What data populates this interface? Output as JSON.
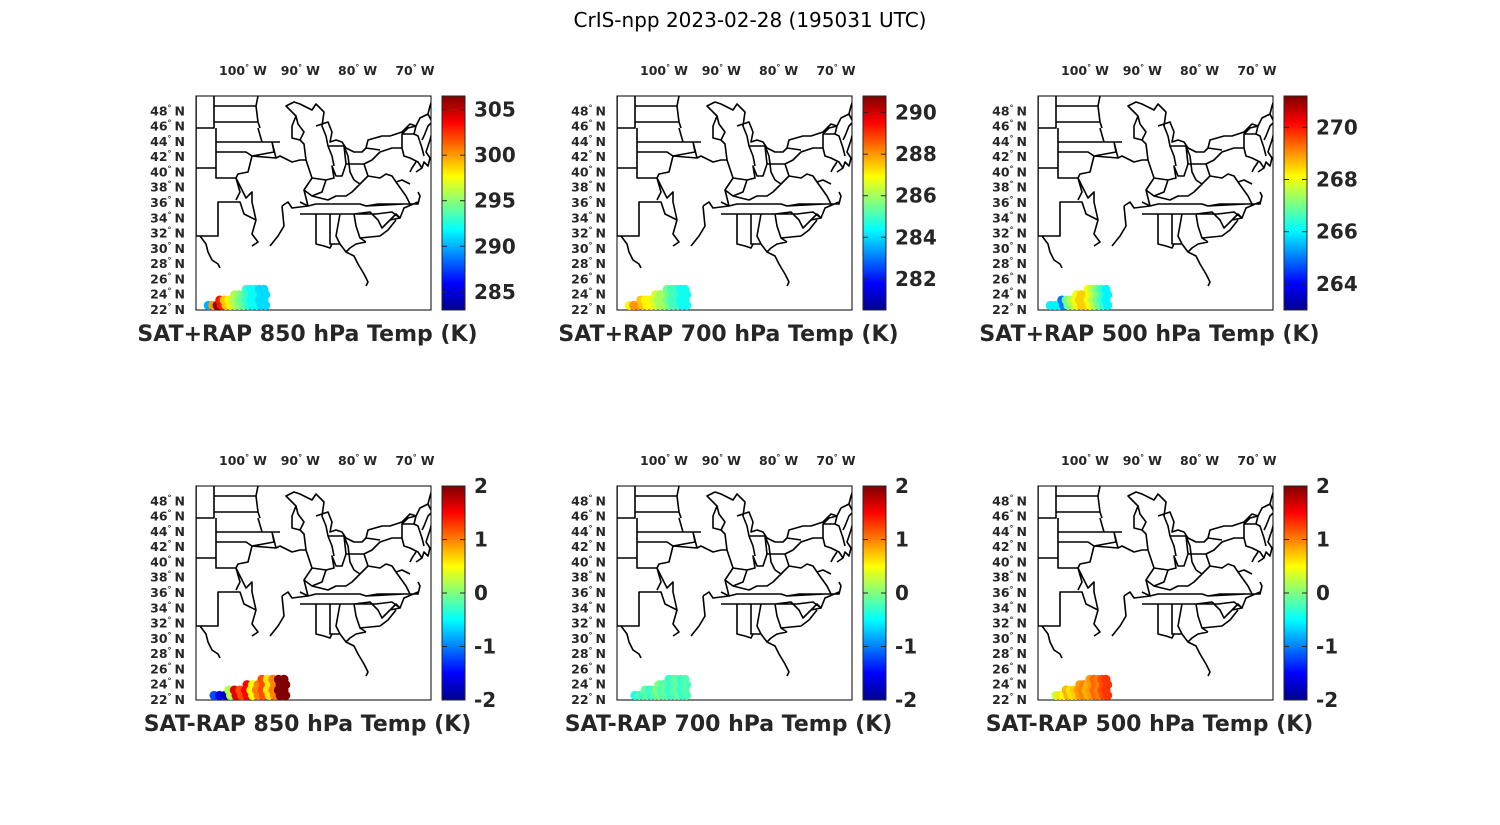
{
  "figure": {
    "title": "CrIS-npp 2023-02-28 (195031 UTC)"
  },
  "map_extent": {
    "lon_min": -107.5,
    "lon_max": -66.5,
    "lat_min": 22,
    "lat_max": 50
  },
  "lon_ticks": [
    {
      "lon": -100,
      "num": "100",
      "hem": "W"
    },
    {
      "lon": -90,
      "num": "90",
      "hem": "W"
    },
    {
      "lon": -80,
      "num": "80",
      "hem": "W"
    },
    {
      "lon": -70,
      "num": "70",
      "hem": "W"
    }
  ],
  "lat_ticks": [
    {
      "lat": 48,
      "num": "48",
      "hem": "N"
    },
    {
      "lat": 46,
      "num": "46",
      "hem": "N"
    },
    {
      "lat": 44,
      "num": "44",
      "hem": "N"
    },
    {
      "lat": 42,
      "num": "42",
      "hem": "N"
    },
    {
      "lat": 40,
      "num": "40",
      "hem": "N"
    },
    {
      "lat": 38,
      "num": "38",
      "hem": "N"
    },
    {
      "lat": 36,
      "num": "36",
      "hem": "N"
    },
    {
      "lat": 34,
      "num": "34",
      "hem": "N"
    },
    {
      "lat": 32,
      "num": "32",
      "hem": "N"
    },
    {
      "lat": 30,
      "num": "30",
      "hem": "N"
    },
    {
      "lat": 28,
      "num": "28",
      "hem": "N"
    },
    {
      "lat": 26,
      "num": "26",
      "hem": "N"
    },
    {
      "lat": 24,
      "num": "24",
      "hem": "N"
    },
    {
      "lat": 22,
      "num": "22",
      "hem": "N"
    }
  ],
  "colormap": "jet",
  "panels": [
    {
      "title": "SAT+RAP 850 hPa Temp (K)",
      "clim": [
        283,
        306.5
      ],
      "ticks": [
        "305",
        "300",
        "295",
        "290",
        "285"
      ],
      "tick_values": [
        305,
        300,
        295,
        290,
        285
      ],
      "swath": {
        "lon_start": -105.5,
        "lon_end": -95.5,
        "values_w_to_e": [
          290,
          300,
          306,
          303,
          299,
          298,
          296,
          295,
          294,
          293,
          292,
          292,
          291,
          291
        ]
      }
    },
    {
      "title": "SAT+RAP 700 hPa Temp (K)",
      "clim": [
        280.5,
        290.8
      ],
      "ticks": [
        "290",
        "288",
        "286",
        "284",
        "282"
      ],
      "tick_values": [
        290,
        288,
        286,
        284,
        282
      ],
      "swath": {
        "lon_start": -105.5,
        "lon_end": -95.5,
        "values_w_to_e": [
          287,
          288,
          288,
          287.5,
          287,
          287,
          286.5,
          286,
          286,
          285.5,
          285,
          285,
          284.5,
          284.5
        ]
      }
    },
    {
      "title": "SAT+RAP 500 hPa Temp (K)",
      "clim": [
        263,
        271.2
      ],
      "ticks": [
        "270",
        "268",
        "266",
        "264"
      ],
      "tick_values": [
        270,
        268,
        266,
        264
      ],
      "swath": {
        "lon_start": -105.5,
        "lon_end": -95.5,
        "values_w_to_e": [
          266,
          266,
          266,
          265,
          267,
          267.5,
          268,
          268.5,
          268.5,
          268,
          267.5,
          267,
          266.5,
          266
        ]
      }
    },
    {
      "title": "SAT-RAP 850 hPa Temp (K)",
      "clim": [
        -2,
        2
      ],
      "ticks": [
        "2",
        "1",
        "0",
        "-1",
        "-2"
      ],
      "tick_values": [
        2,
        1,
        0,
        -1,
        -2
      ],
      "swath": {
        "lon_start": -104.5,
        "lon_end": -92,
        "values_w_to_e": [
          -1.2,
          -1.5,
          -1.8,
          0.2,
          1.6,
          1.2,
          1.5,
          0.5,
          1.0,
          1.2,
          0.6,
          1.0,
          2.0,
          2.0
        ]
      }
    },
    {
      "title": "SAT-RAP 700 hPa Temp (K)",
      "clim": [
        -2,
        2
      ],
      "ticks": [
        "2",
        "1",
        "0",
        "-1",
        "-2"
      ],
      "tick_values": [
        2,
        1,
        0,
        -1,
        -2
      ],
      "swath": {
        "lon_start": -104.5,
        "lon_end": -95.5,
        "values_w_to_e": [
          -0.4,
          -0.2,
          -0.3,
          -0.1,
          -0.3,
          -0.2,
          0.0,
          -0.2,
          -0.1,
          -0.3,
          -0.2,
          -0.1,
          -0.3,
          -0.2
        ]
      }
    },
    {
      "title": "SAT-RAP 500 hPa Temp (K)",
      "clim": [
        -2,
        2
      ],
      "ticks": [
        "2",
        "1",
        "0",
        "-1",
        "-2"
      ],
      "tick_values": [
        2,
        1,
        0,
        -1,
        -2
      ],
      "swath": {
        "lon_start": -104.5,
        "lon_end": -95.5,
        "values_w_to_e": [
          0.3,
          0.6,
          0.5,
          0.8,
          0.6,
          0.7,
          0.9,
          1.0,
          0.8,
          0.9,
          1.1,
          1.0,
          1.2,
          1.3
        ]
      }
    }
  ]
}
